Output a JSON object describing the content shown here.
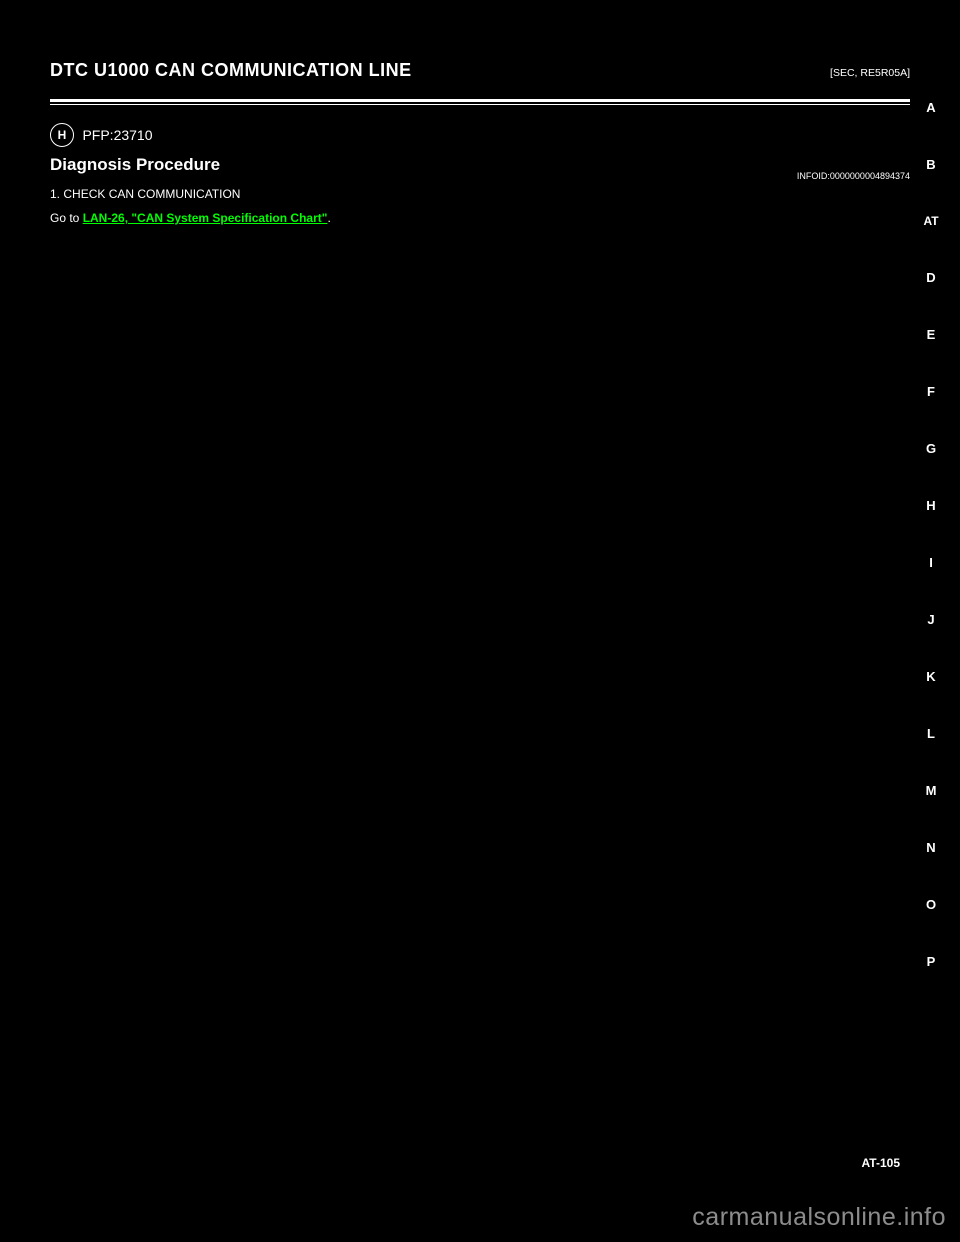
{
  "header": {
    "title_left": "DTC U1000 CAN COMMUNICATION LINE",
    "breadcrumb_right": "[SEC, RE5R05A]"
  },
  "icon": {
    "letter": "H",
    "label": "PFP:23710"
  },
  "section": {
    "title": "Diagnosis Procedure",
    "code": "INFOID:0000000004894374"
  },
  "body": {
    "step_num": "1.",
    "step_title": "CHECK CAN COMMUNICATION",
    "para1_prefix": "Go to ",
    "link1": "LAN-26, \"CAN System Specification Chart\"",
    "para1_suffix": "."
  },
  "tabs": [
    "A",
    "B",
    "AT",
    "D",
    "E",
    "F",
    "G",
    "H",
    "I",
    "J",
    "K",
    "L",
    "M",
    "N",
    "O",
    "P"
  ],
  "page_number": "AT-105",
  "watermark": "carmanualsonline.info"
}
